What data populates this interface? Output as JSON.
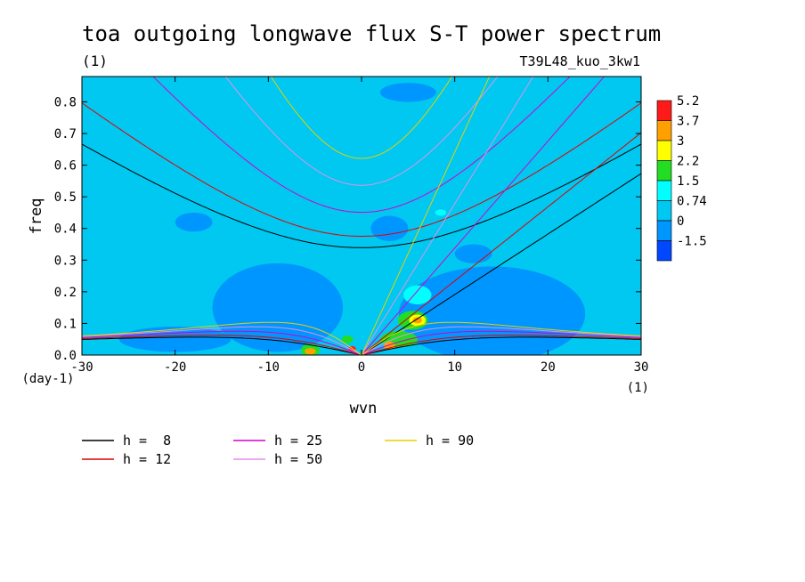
{
  "chart_data": {
    "type": "heatmap",
    "title": "toa outgoing longwave flux S-T power spectrum",
    "title_units": "(1)",
    "experiment": "T39L48_kuo_3kw1",
    "xlabel": "wvn",
    "ylabel": "freq",
    "x_units": "(1)",
    "y_units": "(day-1)",
    "xlim": [
      -30,
      30
    ],
    "ylim": [
      0,
      0.88
    ],
    "x_ticks": [
      -30,
      -20,
      -10,
      0,
      10,
      20,
      30
    ],
    "x_tick_labels": [
      "-30",
      "-20",
      "-10",
      "0",
      "10",
      "20",
      "30"
    ],
    "y_ticks": [
      0,
      0.1,
      0.2,
      0.3,
      0.4,
      0.5,
      0.6,
      0.7,
      0.8
    ],
    "y_tick_labels": [
      "0.0",
      "0.1",
      "0.2",
      "0.3",
      "0.4",
      "0.5",
      "0.6",
      "0.7",
      "0.8"
    ],
    "background_level": "0.74",
    "colorbar": {
      "labels": [
        "5.2",
        "3.7",
        "3",
        "2.2",
        "1.5",
        "0.74",
        "0",
        "-1.5"
      ],
      "colors": [
        "#ff1a1a",
        "#ffa000",
        "#ffff00",
        "#22dd22",
        "#00ffff",
        "#00c8f0",
        "#0096ff",
        "#0048ff"
      ]
    },
    "power_patches": [
      {
        "x": -9,
        "y": 0.15,
        "rx": 7,
        "ry": 0.14,
        "level": "0"
      },
      {
        "x": 14,
        "y": 0.13,
        "rx": 10,
        "ry": 0.15,
        "level": "0"
      },
      {
        "x": -20,
        "y": 0.05,
        "rx": 6,
        "ry": 0.04,
        "level": "0"
      },
      {
        "x": 3,
        "y": 0.4,
        "rx": 2,
        "ry": 0.04,
        "level": "0"
      },
      {
        "x": 12,
        "y": 0.32,
        "rx": 2,
        "ry": 0.03,
        "level": "0"
      },
      {
        "x": 5,
        "y": 0.83,
        "rx": 3,
        "ry": 0.03,
        "level": "0"
      },
      {
        "x": -18,
        "y": 0.42,
        "rx": 2,
        "ry": 0.03,
        "level": "0"
      },
      {
        "x": 6,
        "y": 0.19,
        "rx": 1.5,
        "ry": 0.03,
        "level": "1.5"
      },
      {
        "x": 5.5,
        "y": 0.11,
        "rx": 1.6,
        "ry": 0.03,
        "level": "2.2"
      },
      {
        "x": 4,
        "y": 0.05,
        "rx": 2,
        "ry": 0.025,
        "level": "2.2"
      },
      {
        "x": 6,
        "y": 0.11,
        "rx": 0.9,
        "ry": 0.018,
        "level": "3"
      },
      {
        "x": 6,
        "y": 0.11,
        "rx": 0.5,
        "ry": 0.01,
        "level": "3.7"
      },
      {
        "x": 3,
        "y": 0.03,
        "rx": 0.6,
        "ry": 0.012,
        "level": "3.7"
      },
      {
        "x": -5.5,
        "y": 0.015,
        "rx": 1,
        "ry": 0.02,
        "level": "2.2"
      },
      {
        "x": -5.5,
        "y": 0.012,
        "rx": 0.6,
        "ry": 0.01,
        "level": "3.7"
      },
      {
        "x": -1.5,
        "y": 0.05,
        "rx": 0.6,
        "ry": 0.012,
        "level": "2.2"
      },
      {
        "x": 8.5,
        "y": 0.45,
        "rx": 0.6,
        "ry": 0.01,
        "level": "1.5"
      },
      {
        "x": -1,
        "y": 0.02,
        "rx": 0.4,
        "ry": 0.008,
        "level": "5.2"
      }
    ],
    "series": [
      {
        "name": "h =  8",
        "h": 8,
        "color": "#000000"
      },
      {
        "name": "h = 12",
        "h": 12,
        "color": "#e00000"
      },
      {
        "name": "h = 25",
        "h": 25,
        "color": "#d000d0"
      },
      {
        "name": "h = 50",
        "h": 50,
        "color": "#e090e8"
      },
      {
        "name": "h = 90",
        "h": 90,
        "color": "#e8d000"
      }
    ],
    "grid": false,
    "legend_position": "bottom-left"
  }
}
